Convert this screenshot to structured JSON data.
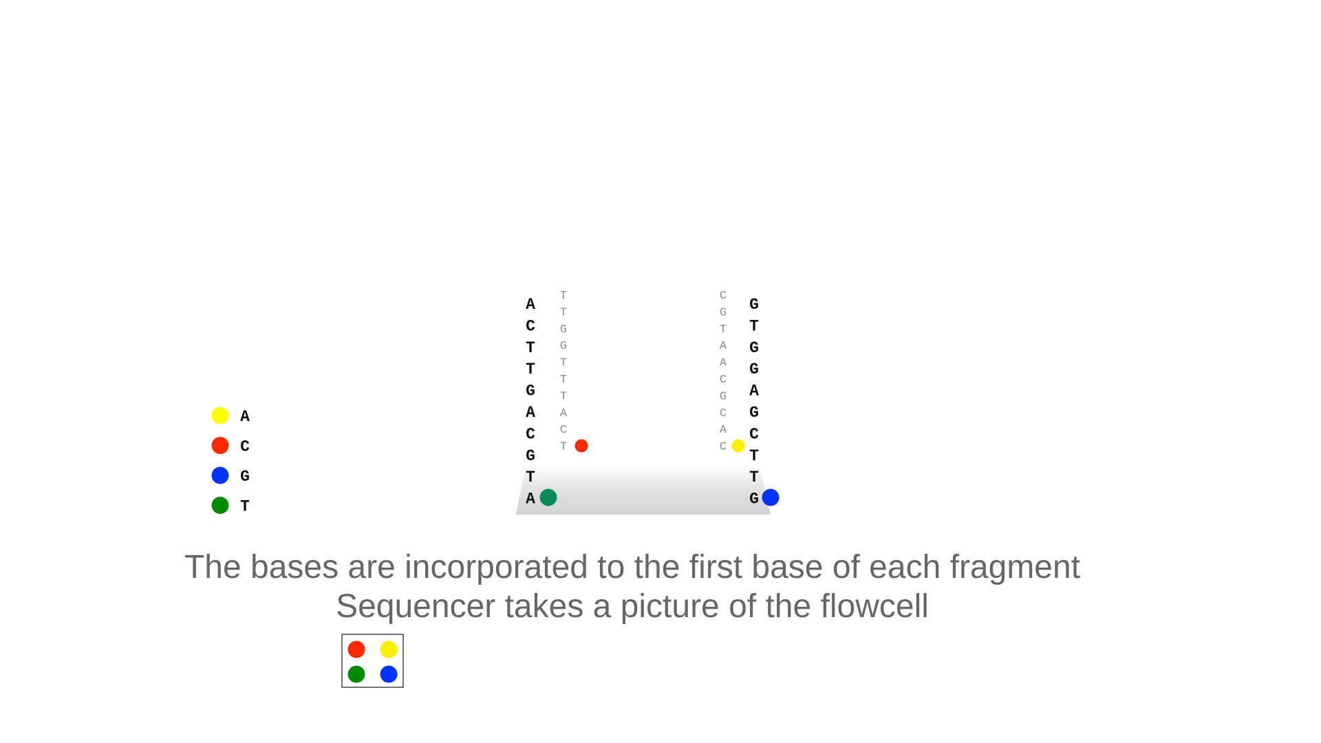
{
  "legend": [
    {
      "base": "A",
      "color": "#ffff00"
    },
    {
      "base": "C",
      "color": "#ff2a00"
    },
    {
      "base": "G",
      "color": "#0033ff"
    },
    {
      "base": "T",
      "color": "#008a00"
    }
  ],
  "incorporated_colors": {
    "A": "#ffee00",
    "C": "#ff2a00",
    "G": "#0033ff",
    "T": "#0a8a55"
  },
  "fragments": {
    "left_template": [
      "A",
      "C",
      "T",
      "T",
      "G",
      "A",
      "C",
      "G",
      "T",
      "A"
    ],
    "left_complement": [
      "T",
      "T",
      "G",
      "G",
      "T",
      "T",
      "T",
      "A",
      "C",
      "T"
    ],
    "right_complement": [
      "C",
      "G",
      "T",
      "A",
      "A",
      "C",
      "G",
      "C",
      "A",
      "C"
    ],
    "right_template": [
      "G",
      "T",
      "G",
      "G",
      "A",
      "G",
      "C",
      "T",
      "T",
      "G"
    ]
  },
  "incorporations": [
    {
      "fragment": "left_template",
      "base": "T"
    },
    {
      "fragment": "left_complement",
      "base": "C"
    },
    {
      "fragment": "right_complement",
      "base": "A"
    },
    {
      "fragment": "right_template",
      "base": "G"
    }
  ],
  "caption": {
    "line1": "The bases are incorporated to the first base of each fragment",
    "line2": "Sequencer takes a picture of the flowcell"
  },
  "picture": [
    {
      "position": "top-left",
      "color": "#ff2a00"
    },
    {
      "position": "top-right",
      "color": "#ffee00"
    },
    {
      "position": "bottom-left",
      "color": "#008a00"
    },
    {
      "position": "bottom-right",
      "color": "#0033ff"
    }
  ]
}
